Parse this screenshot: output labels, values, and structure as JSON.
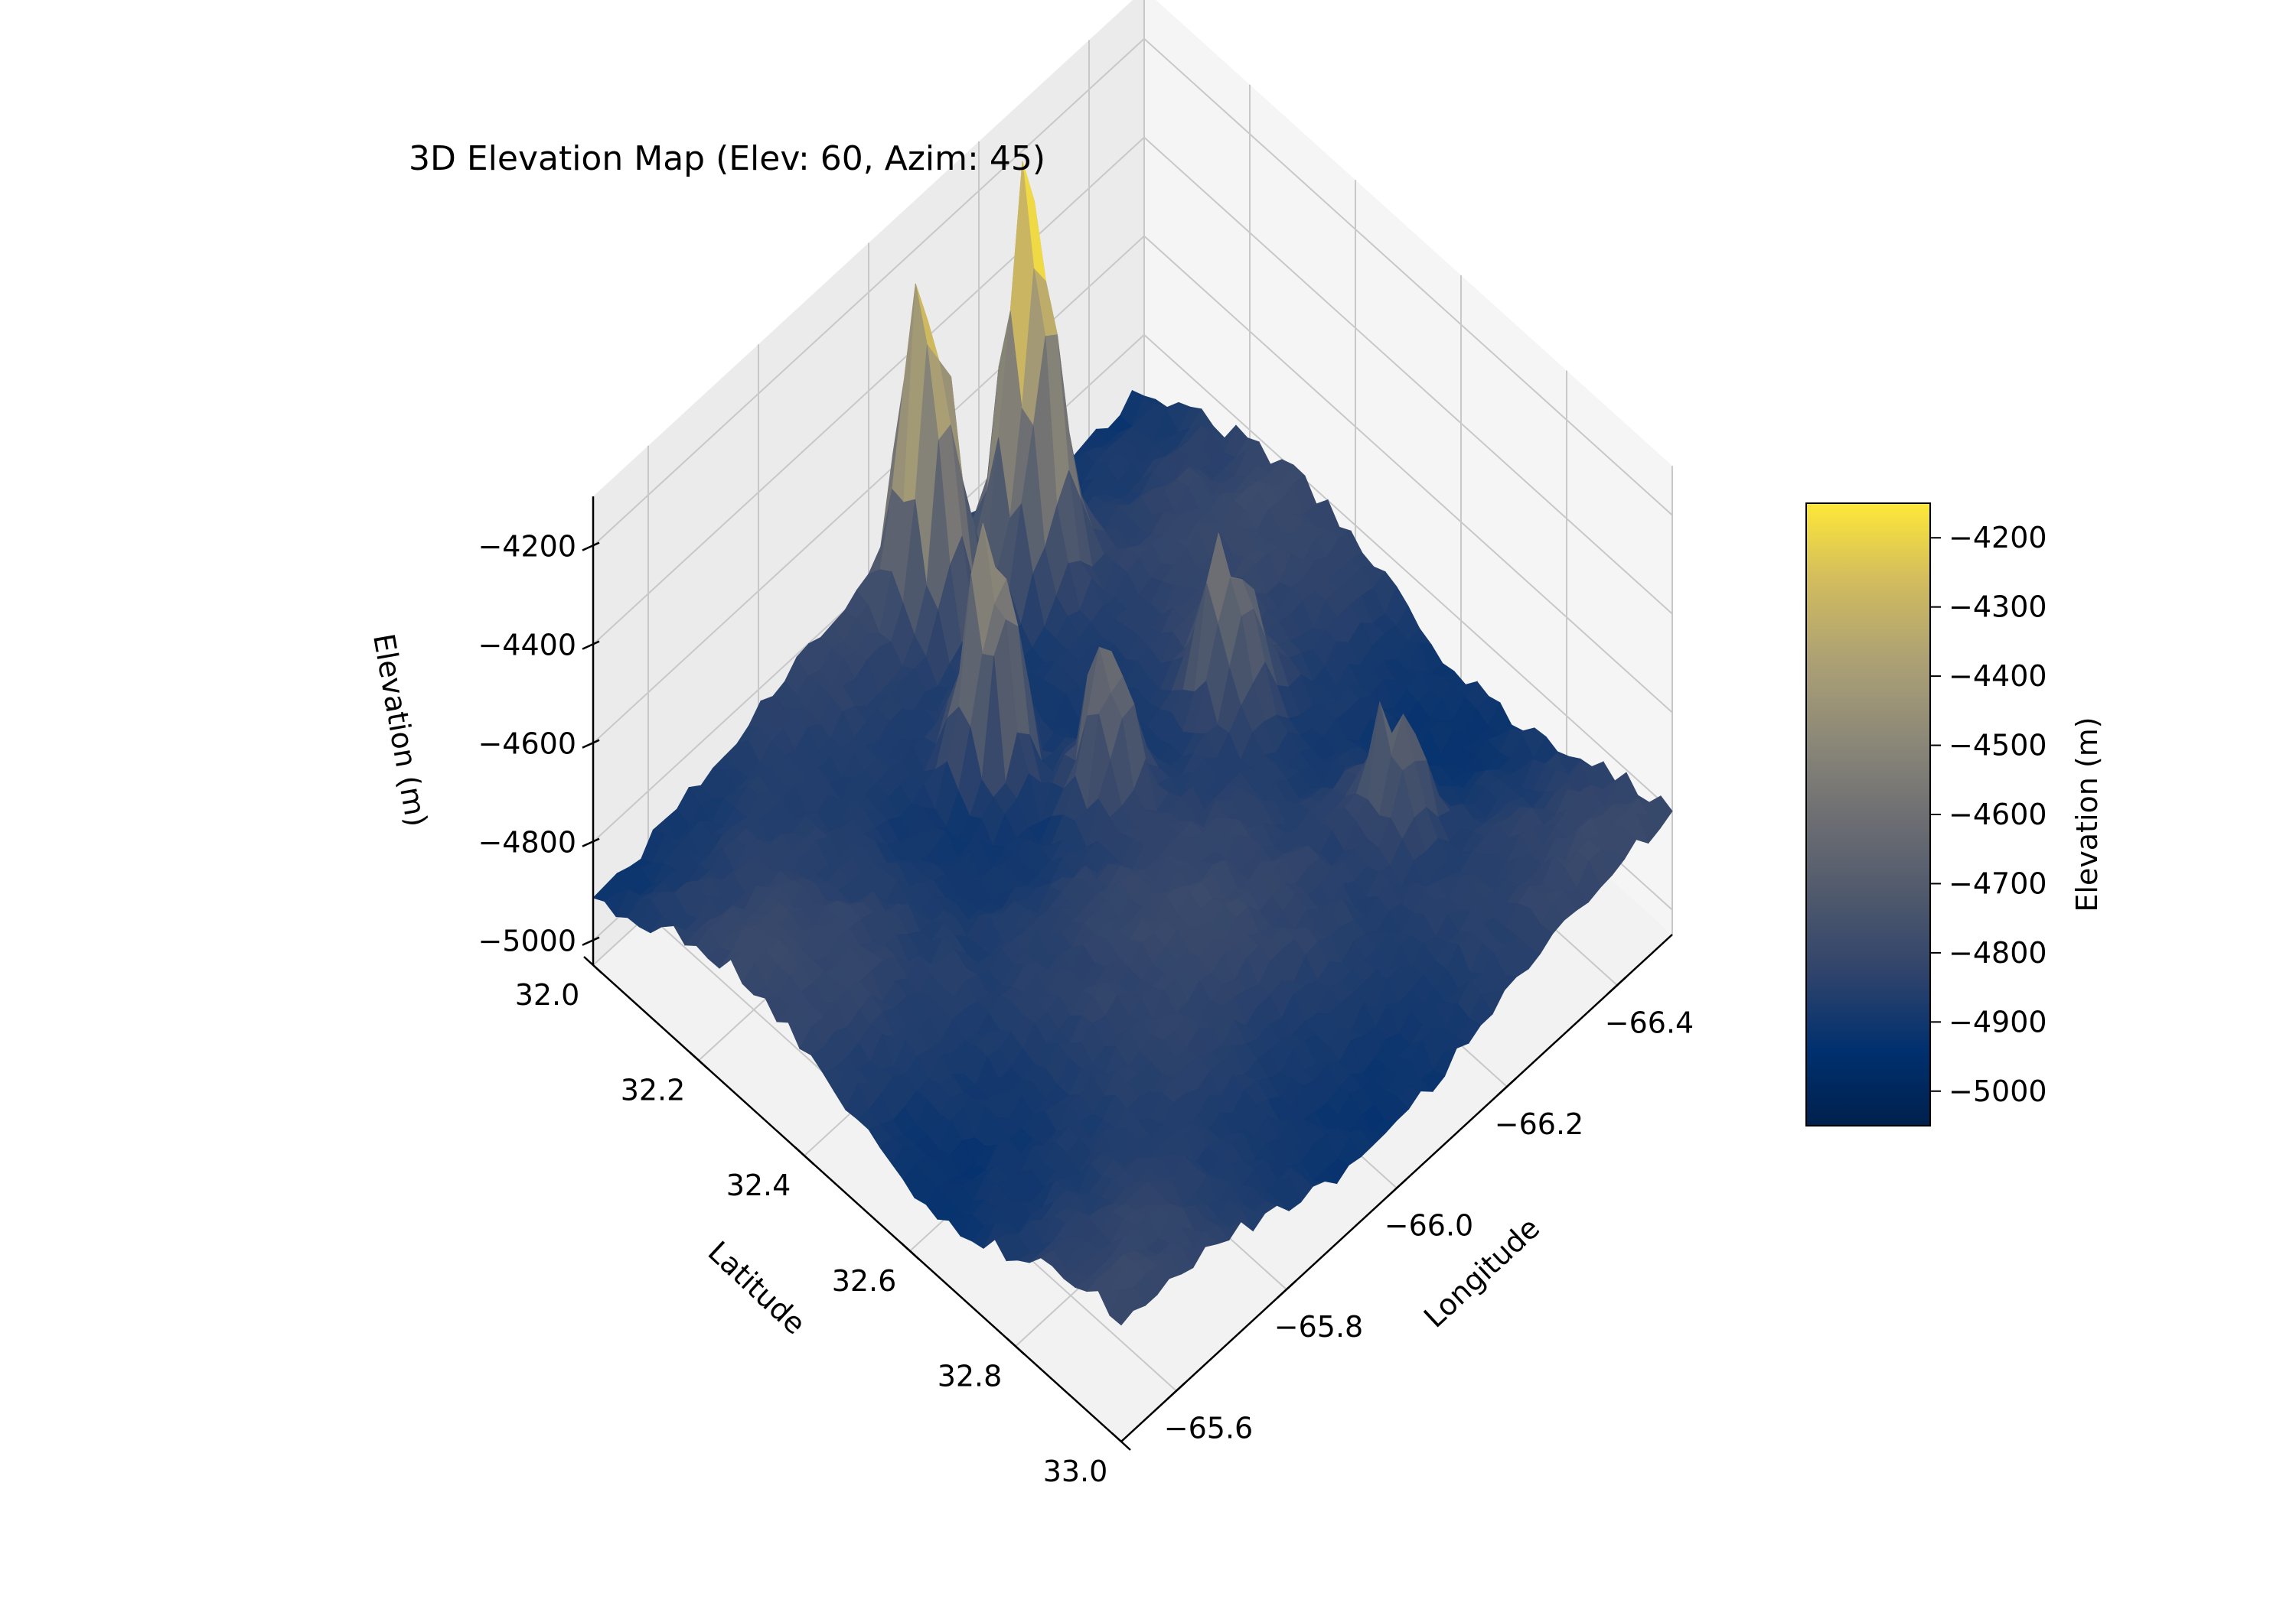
{
  "chart_data": {
    "type": "surface3d",
    "title": "3D Elevation Map (Elev: 60, Azim: 45)",
    "view": {
      "elevation": 60,
      "azimuth": 45
    },
    "colormap": "cividis",
    "xlabel": "Latitude",
    "ylabel": "Longitude",
    "zlabel": "Elevation (m)",
    "xlim": [
      32.0,
      33.0
    ],
    "ylim": [
      -66.5,
      -65.5
    ],
    "zlim": [
      -5050,
      -4120
    ],
    "x_ticks": [
      "32.0",
      "32.2",
      "32.4",
      "32.6",
      "32.8",
      "33.0"
    ],
    "x_tick_values": [
      32.0,
      32.2,
      32.4,
      32.6,
      32.8,
      33.0
    ],
    "y_ticks": [
      "−66.4",
      "−66.2",
      "−66.0",
      "−65.8",
      "−65.6"
    ],
    "y_tick_values": [
      -66.4,
      -66.2,
      -66.0,
      -65.8,
      -65.6
    ],
    "z_ticks": [
      "−4200",
      "−4400",
      "−4600",
      "−4800",
      "−5000"
    ],
    "z_tick_values": [
      -4200,
      -4400,
      -4600,
      -4800,
      -5000
    ],
    "colorbar": {
      "label": "Elevation (m)",
      "range": [
        -5050,
        -4150
      ],
      "ticks": [
        "−4200",
        "−4300",
        "−4400",
        "−4500",
        "−4600",
        "−4700",
        "−4800",
        "−4900",
        "−5000"
      ],
      "tick_values": [
        -4200,
        -4300,
        -4400,
        -4500,
        -4600,
        -4700,
        -4800,
        -4900,
        -5000
      ]
    },
    "grid": true,
    "peaks": [
      {
        "lat": 32.1,
        "lon": -66.2,
        "elevation": -4150
      },
      {
        "lat": 32.05,
        "lon": -66.06,
        "elevation": -4250
      },
      {
        "lat": 32.25,
        "lon": -65.98,
        "elevation": -4400
      },
      {
        "lat": 32.4,
        "lon": -66.05,
        "elevation": -4600
      },
      {
        "lat": 32.42,
        "lon": -66.25,
        "elevation": -4550
      },
      {
        "lat": 32.7,
        "lon": -66.28,
        "elevation": -4600
      }
    ]
  }
}
